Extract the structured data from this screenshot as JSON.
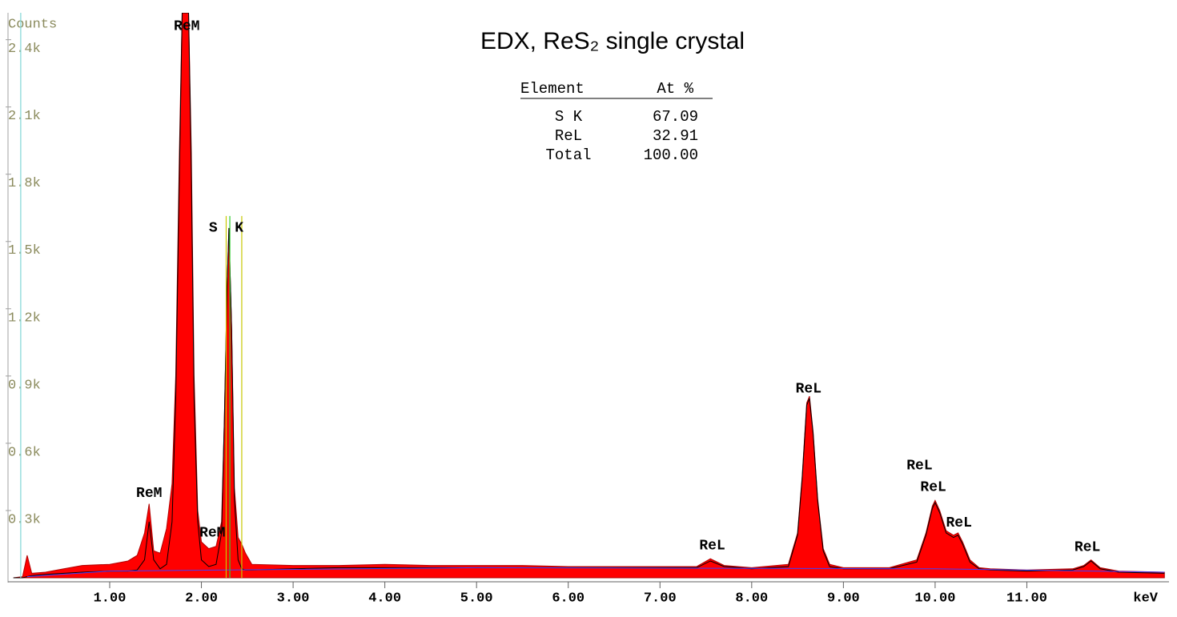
{
  "chart_data": {
    "type": "area",
    "title": "EDX, ReS₂ single crystal",
    "ylabel": "Counts",
    "xlabel": "keV",
    "xlim": [
      -0.1,
      12.55
    ],
    "ylim": [
      0,
      2520
    ],
    "xticks": [
      {
        "value": 1,
        "label": "1.00"
      },
      {
        "value": 2,
        "label": "2.00"
      },
      {
        "value": 3,
        "label": "3.00"
      },
      {
        "value": 4,
        "label": "4.00"
      },
      {
        "value": 5,
        "label": "5.00"
      },
      {
        "value": 6,
        "label": "6.00"
      },
      {
        "value": 7,
        "label": "7.00"
      },
      {
        "value": 8,
        "label": "8.00"
      },
      {
        "value": 9,
        "label": "9.00"
      },
      {
        "value": 10,
        "label": "10.00"
      },
      {
        "value": 11,
        "label": "11.00"
      }
    ],
    "yticks": [
      {
        "value": 300,
        "label": "0.3k"
      },
      {
        "value": 600,
        "label": "0.6k"
      },
      {
        "value": 900,
        "label": "0.9k"
      },
      {
        "value": 1200,
        "label": "1.2k"
      },
      {
        "value": 1500,
        "label": "1.5k"
      },
      {
        "value": 1800,
        "label": "1.8k"
      },
      {
        "value": 2100,
        "label": "2.1k"
      },
      {
        "value": 2400,
        "label": "2.4k"
      }
    ],
    "x": [
      -0.05,
      0.05,
      0.1,
      0.15,
      0.3,
      0.5,
      0.7,
      1.0,
      1.2,
      1.3,
      1.38,
      1.43,
      1.48,
      1.55,
      1.62,
      1.68,
      1.72,
      1.76,
      1.79,
      1.82,
      1.86,
      1.89,
      1.92,
      1.96,
      2.0,
      2.08,
      2.16,
      2.22,
      2.25,
      2.28,
      2.3,
      2.33,
      2.36,
      2.4,
      2.44,
      2.48,
      2.55,
      3.0,
      3.5,
      4.0,
      4.5,
      5.0,
      5.5,
      6.0,
      6.5,
      7.0,
      7.4,
      7.55,
      7.7,
      8.0,
      8.4,
      8.5,
      8.55,
      8.6,
      8.63,
      8.67,
      8.72,
      8.78,
      8.85,
      9.0,
      9.5,
      9.8,
      9.9,
      9.97,
      10.0,
      10.05,
      10.12,
      10.2,
      10.25,
      10.3,
      10.38,
      10.48,
      10.6,
      11.0,
      11.5,
      11.62,
      11.7,
      11.8,
      12.0,
      12.5
    ],
    "series": [
      {
        "color": "#ff0000",
        "values": [
          0,
          5,
          100,
          20,
          25,
          40,
          55,
          60,
          75,
          100,
          200,
          330,
          120,
          110,
          220,
          420,
          900,
          1900,
          2520,
          2520,
          2520,
          1900,
          900,
          300,
          160,
          130,
          140,
          250,
          700,
          1300,
          1560,
          1100,
          400,
          180,
          150,
          110,
          60,
          55,
          55,
          60,
          55,
          55,
          55,
          50,
          50,
          50,
          50,
          85,
          55,
          45,
          60,
          200,
          450,
          780,
          810,
          650,
          350,
          130,
          60,
          45,
          45,
          80,
          200,
          320,
          345,
          300,
          210,
          190,
          200,
          160,
          80,
          45,
          40,
          35,
          40,
          55,
          80,
          45,
          30,
          25
        ]
      },
      {
        "color": "#000000",
        "values": [
          0,
          0,
          5,
          10,
          15,
          20,
          25,
          30,
          30,
          35,
          80,
          250,
          80,
          40,
          60,
          250,
          800,
          1800,
          2520,
          2520,
          2520,
          1800,
          800,
          250,
          80,
          50,
          60,
          200,
          700,
          1300,
          1560,
          1100,
          350,
          80,
          40,
          35,
          35,
          40,
          45,
          45,
          45,
          45,
          45,
          45,
          45,
          45,
          45,
          75,
          50,
          40,
          50,
          190,
          440,
          770,
          800,
          640,
          340,
          120,
          50,
          40,
          40,
          70,
          190,
          310,
          335,
          290,
          200,
          180,
          190,
          150,
          70,
          40,
          35,
          30,
          35,
          50,
          75,
          40,
          25,
          20
        ]
      },
      {
        "color": "#4040ff",
        "x": [
          0.1,
          1.0,
          5.0,
          10.0,
          12.5
        ],
        "values": [
          5,
          30,
          45,
          40,
          25
        ]
      }
    ],
    "markers": [
      {
        "x": 0.03,
        "top": 2520,
        "color": "#7fd7d7"
      },
      {
        "x": 2.27,
        "top": 1614,
        "color": "#c8c800"
      },
      {
        "x": 2.31,
        "top": 1614,
        "color": "#33cc33"
      },
      {
        "x": 2.44,
        "top": 1614,
        "color": "#c8c800"
      }
    ],
    "annotations": [
      {
        "text": "ReM",
        "x": 1.84,
        "y": 2460
      },
      {
        "text": "ReM",
        "x": 1.43,
        "y": 378
      },
      {
        "text": "ReM",
        "x": 2.12,
        "y": 200
      },
      {
        "text": "S  K",
        "x": 2.27,
        "y": 1560
      },
      {
        "text": "ReL",
        "x": 7.57,
        "y": 143
      },
      {
        "text": "ReL",
        "x": 8.62,
        "y": 843
      },
      {
        "text": "ReL",
        "x": 9.83,
        "y": 500
      },
      {
        "text": "ReL",
        "x": 9.98,
        "y": 404
      },
      {
        "text": "ReL",
        "x": 10.26,
        "y": 246
      },
      {
        "text": "ReL",
        "x": 11.66,
        "y": 136
      }
    ],
    "table": {
      "columns": [
        "Element",
        "At %"
      ],
      "rows": [
        [
          "S K",
          "67.09"
        ],
        [
          "ReL",
          "32.91"
        ],
        [
          "Total",
          "100.00"
        ]
      ]
    }
  }
}
